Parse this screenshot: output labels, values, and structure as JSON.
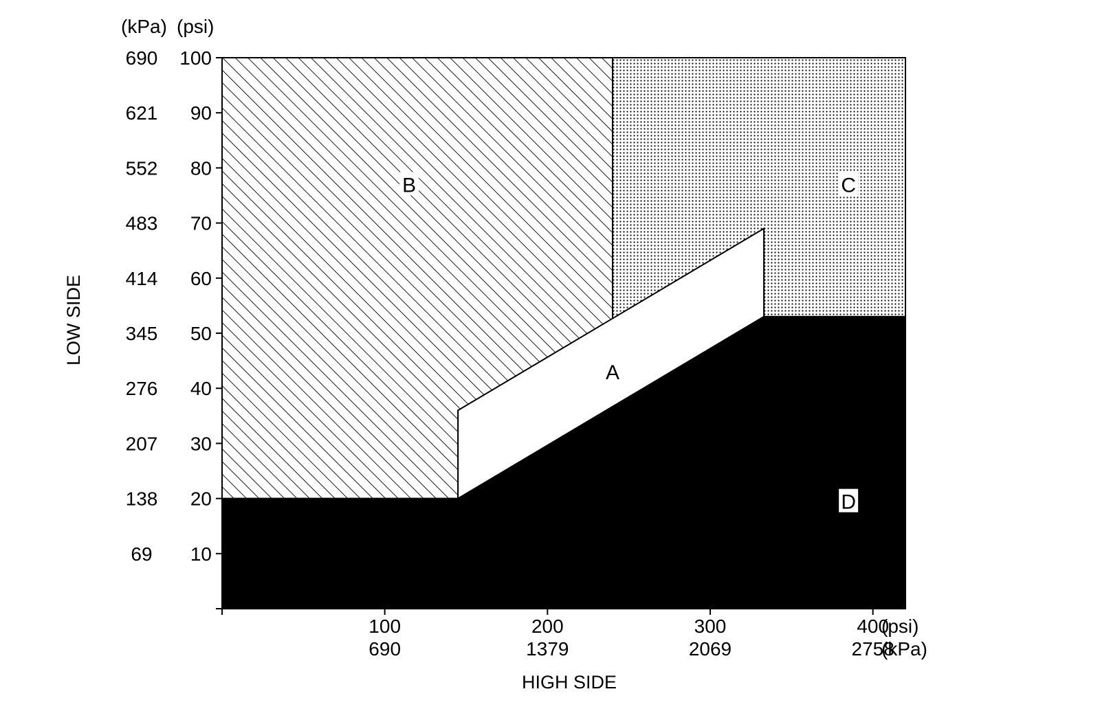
{
  "chart_data": {
    "type": "area",
    "title": "",
    "xlabel": "HIGH SIDE",
    "ylabel": "LOW SIDE",
    "x_units": {
      "primary": "(psi)",
      "secondary": "(kPa)"
    },
    "y_units": {
      "primary": "(psi)",
      "secondary": "(kPa)"
    },
    "xlim": [
      0,
      420
    ],
    "ylim": [
      0,
      100
    ],
    "x_ticks": [
      {
        "psi": 100,
        "psi_label": "100",
        "kpa_label": "690"
      },
      {
        "psi": 200,
        "psi_label": "200",
        "kpa_label": "1379"
      },
      {
        "psi": 300,
        "psi_label": "300",
        "kpa_label": "2069"
      },
      {
        "psi": 400,
        "psi_label": "400",
        "kpa_label": "2758"
      }
    ],
    "y_ticks": [
      {
        "psi": 10,
        "psi_label": "10",
        "kpa_label": "69"
      },
      {
        "psi": 20,
        "psi_label": "20",
        "kpa_label": "138"
      },
      {
        "psi": 30,
        "psi_label": "30",
        "kpa_label": "207"
      },
      {
        "psi": 40,
        "psi_label": "40",
        "kpa_label": "276"
      },
      {
        "psi": 50,
        "psi_label": "50",
        "kpa_label": "345"
      },
      {
        "psi": 60,
        "psi_label": "60",
        "kpa_label": "414"
      },
      {
        "psi": 70,
        "psi_label": "70",
        "kpa_label": "483"
      },
      {
        "psi": 80,
        "psi_label": "80",
        "kpa_label": "552"
      },
      {
        "psi": 90,
        "psi_label": "90",
        "kpa_label": "621"
      },
      {
        "psi": 100,
        "psi_label": "100",
        "kpa_label": "690"
      }
    ],
    "regions": [
      {
        "label": "B",
        "fill": "hatch",
        "points": [
          [
            0,
            20
          ],
          [
            145,
            20
          ],
          [
            145,
            36
          ],
          [
            240,
            52.5
          ],
          [
            240,
            100
          ],
          [
            0,
            100
          ]
        ],
        "label_at": [
          115,
          77
        ]
      },
      {
        "label": "C",
        "fill": "dots",
        "points": [
          [
            240,
            100
          ],
          [
            420,
            100
          ],
          [
            420,
            53
          ],
          [
            333,
            53
          ],
          [
            333,
            69
          ],
          [
            240,
            52.5
          ]
        ],
        "label_at": [
          385,
          77
        ]
      },
      {
        "label": "A",
        "fill": "white",
        "points": [
          [
            145,
            20
          ],
          [
            145,
            36
          ],
          [
            333,
            69
          ],
          [
            333,
            53
          ]
        ],
        "label_at": [
          240,
          43
        ]
      },
      {
        "label": "D",
        "fill": "solid",
        "points": [
          [
            0,
            0
          ],
          [
            420,
            0
          ],
          [
            420,
            53
          ],
          [
            333,
            53
          ],
          [
            145,
            20
          ],
          [
            0,
            20
          ]
        ],
        "label_at": [
          385,
          19.5
        ]
      }
    ],
    "grid": false,
    "legend": "none"
  }
}
